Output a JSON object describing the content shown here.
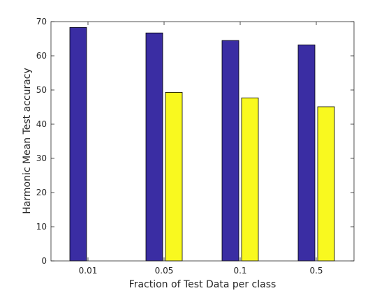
{
  "chart_data": {
    "type": "bar",
    "title": "",
    "xlabel": "Fraction of Test Data per class",
    "ylabel": "Harmonic Mean Test accuracy",
    "categories": [
      "0.01",
      "0.05",
      "0.1",
      "0.5"
    ],
    "series": [
      {
        "values": [
          68.3,
          66.7,
          64.5,
          63.2
        ],
        "color": "#3a2da3"
      },
      {
        "values": [
          0,
          49.3,
          47.7,
          45.1
        ],
        "color": "#f9f91f"
      }
    ],
    "ylim": [
      0,
      70
    ],
    "yticks": [
      0,
      10,
      20,
      30,
      40,
      50,
      60,
      70
    ],
    "grid": false,
    "legend": "none"
  }
}
